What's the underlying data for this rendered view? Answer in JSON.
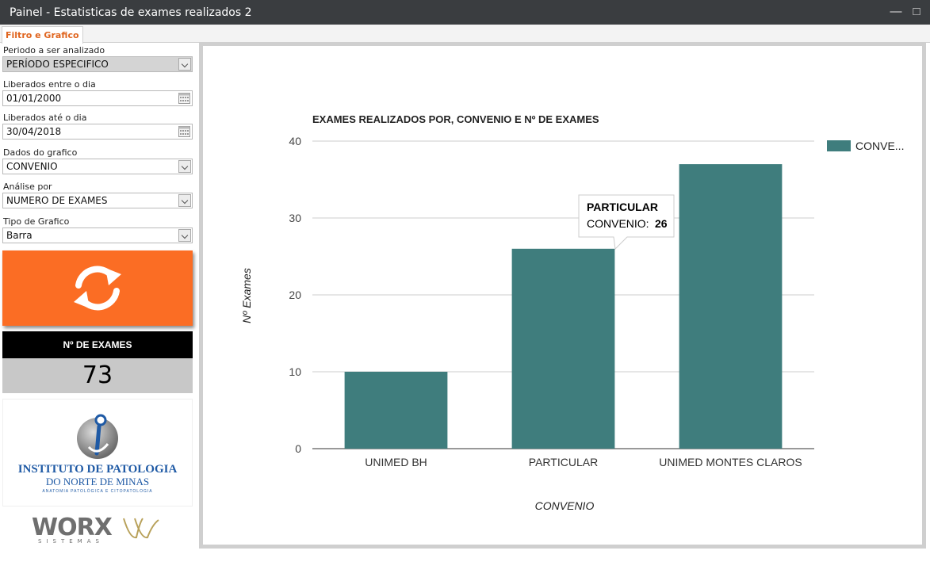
{
  "window": {
    "title": "Painel - Estatisticas de exames realizados 2",
    "minimize_glyph": "—",
    "maximize_glyph": "□"
  },
  "tabs": [
    {
      "label": "Filtro e Grafico",
      "active": true
    }
  ],
  "filters": {
    "periodo_label": "Periodo a ser analizado",
    "periodo_value": "PERÍODO ESPECIFICO",
    "inicio_label": "Liberados entre o dia",
    "inicio_value": "01/01/2000",
    "fim_label": "Liberados até o dia",
    "fim_value": "30/04/2018",
    "dados_label": "Dados do grafico",
    "dados_value": "CONVENIO",
    "analise_label": "Análise por",
    "analise_value": "NUMERO DE EXAMES",
    "tipo_label": "Tipo de Grafico",
    "tipo_value": "Barra"
  },
  "kpi": {
    "label": "Nº DE EXAMES",
    "value": "73"
  },
  "logos": {
    "ipat_line1": "INSTITUTO DE PATOLOGIA",
    "ipat_line2": "DO NORTE DE MINAS",
    "ipat_line3": "ANATOMIA PATOLÓGICA E CITOPATOLOGIA",
    "worx": "WORX",
    "worx_sub": "SISTEMAS"
  },
  "colors": {
    "accent": "#fb6d24",
    "bar": "#3f7d7d",
    "titlebar": "#3a3d40",
    "tab_text": "#e0651f"
  },
  "chart_data": {
    "type": "bar",
    "title": "EXAMES REALIZADOS POR, CONVENIO E Nº DE EXAMES",
    "xlabel": "CONVENIO",
    "ylabel": "Nº Exames",
    "categories": [
      "UNIMED BH",
      "PARTICULAR",
      "UNIMED MONTES CLAROS"
    ],
    "series": [
      {
        "name": "CONVE...",
        "values": [
          10,
          26,
          37
        ]
      }
    ],
    "ylim": [
      0,
      40
    ],
    "yticks": [
      0,
      10,
      20,
      30,
      40
    ],
    "grid": true,
    "legend": "right",
    "tooltip": {
      "category": "PARTICULAR",
      "series_label": "CONVENIO:",
      "value": "26"
    }
  }
}
